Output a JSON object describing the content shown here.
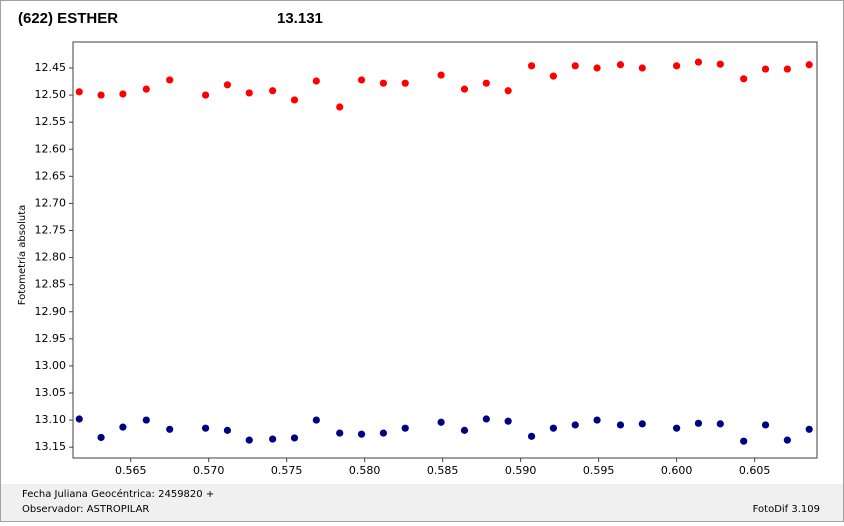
{
  "chart_data": {
    "type": "scatter",
    "title": "(622) ESTHER",
    "title_color": "#e00000",
    "subtitle": "13.131",
    "subtitle_color": "#1a1a8c",
    "y_label": "Fotometría absoluta",
    "footer_left": [
      "Fecha Juliana Geocéntrica: 2459820 +",
      "Observador: ASTROPILAR"
    ],
    "footer_right": "FotoDif 3.109",
    "xlim": [
      0.5613,
      0.609
    ],
    "ylim": [
      12.402,
      13.17
    ],
    "y_inverted": true,
    "grid": false,
    "xticks": [
      0.565,
      {
        "value": 0.57,
        "label": "0.570"
      },
      0.575,
      {
        "value": 0.58,
        "label": "0.580"
      },
      0.585,
      {
        "value": 0.59,
        "label": "0.590"
      },
      0.595,
      {
        "value": 0.6,
        "label": "0.600"
      },
      0.605
    ],
    "yticks": [
      12.45,
      {
        "value": 12.5,
        "label": "12.50"
      },
      12.55,
      {
        "value": 12.6,
        "label": "12.60"
      },
      12.65,
      {
        "value": 12.7,
        "label": "12.70"
      },
      12.75,
      {
        "value": 12.8,
        "label": "12.80"
      },
      12.85,
      {
        "value": 12.9,
        "label": "12.90"
      },
      12.95,
      {
        "value": 13.0,
        "label": "13.00"
      },
      13.05,
      {
        "value": 13.1,
        "label": "13.10"
      },
      13.15
    ],
    "series": [
      {
        "color": "#ff0000",
        "x": [
          0.5617,
          0.5631,
          0.5645,
          0.566,
          0.5675,
          0.5698,
          0.5712,
          0.5726,
          0.5741,
          0.5755,
          0.5769,
          0.5784,
          0.5798,
          0.5812,
          0.5826,
          0.5849,
          0.5864,
          0.5878,
          0.5892,
          0.5907,
          0.5921,
          0.5935,
          0.5949,
          0.5964,
          0.5978,
          0.6,
          0.6014,
          0.6028,
          0.6043,
          0.6057,
          0.6071,
          0.6085
        ],
        "values": [
          12.494,
          12.5,
          12.498,
          12.489,
          12.472,
          12.5,
          12.481,
          12.496,
          12.492,
          12.509,
          12.474,
          12.522,
          12.472,
          12.478,
          12.478,
          12.463,
          12.489,
          12.478,
          12.492,
          12.446,
          12.465,
          12.446,
          12.45,
          12.444,
          12.45,
          12.446,
          12.439,
          12.443,
          12.47,
          12.452,
          12.452,
          12.444
        ]
      },
      {
        "color": "#000080",
        "x": [
          0.5617,
          0.5631,
          0.5645,
          0.566,
          0.5675,
          0.5698,
          0.5712,
          0.5726,
          0.5741,
          0.5755,
          0.5769,
          0.5784,
          0.5798,
          0.5812,
          0.5826,
          0.5849,
          0.5864,
          0.5878,
          0.5892,
          0.5907,
          0.5921,
          0.5935,
          0.5949,
          0.5964,
          0.5978,
          0.6,
          0.6014,
          0.6028,
          0.6043,
          0.6057,
          0.6071,
          0.6085
        ],
        "values": [
          13.098,
          13.132,
          13.113,
          13.1,
          13.117,
          13.115,
          13.119,
          13.137,
          13.135,
          13.133,
          13.1,
          13.124,
          13.126,
          13.124,
          13.115,
          13.104,
          13.119,
          13.098,
          13.102,
          13.13,
          13.115,
          13.109,
          13.1,
          13.109,
          13.107,
          13.115,
          13.106,
          13.107,
          13.139,
          13.109,
          13.137,
          13.117
        ]
      }
    ]
  }
}
